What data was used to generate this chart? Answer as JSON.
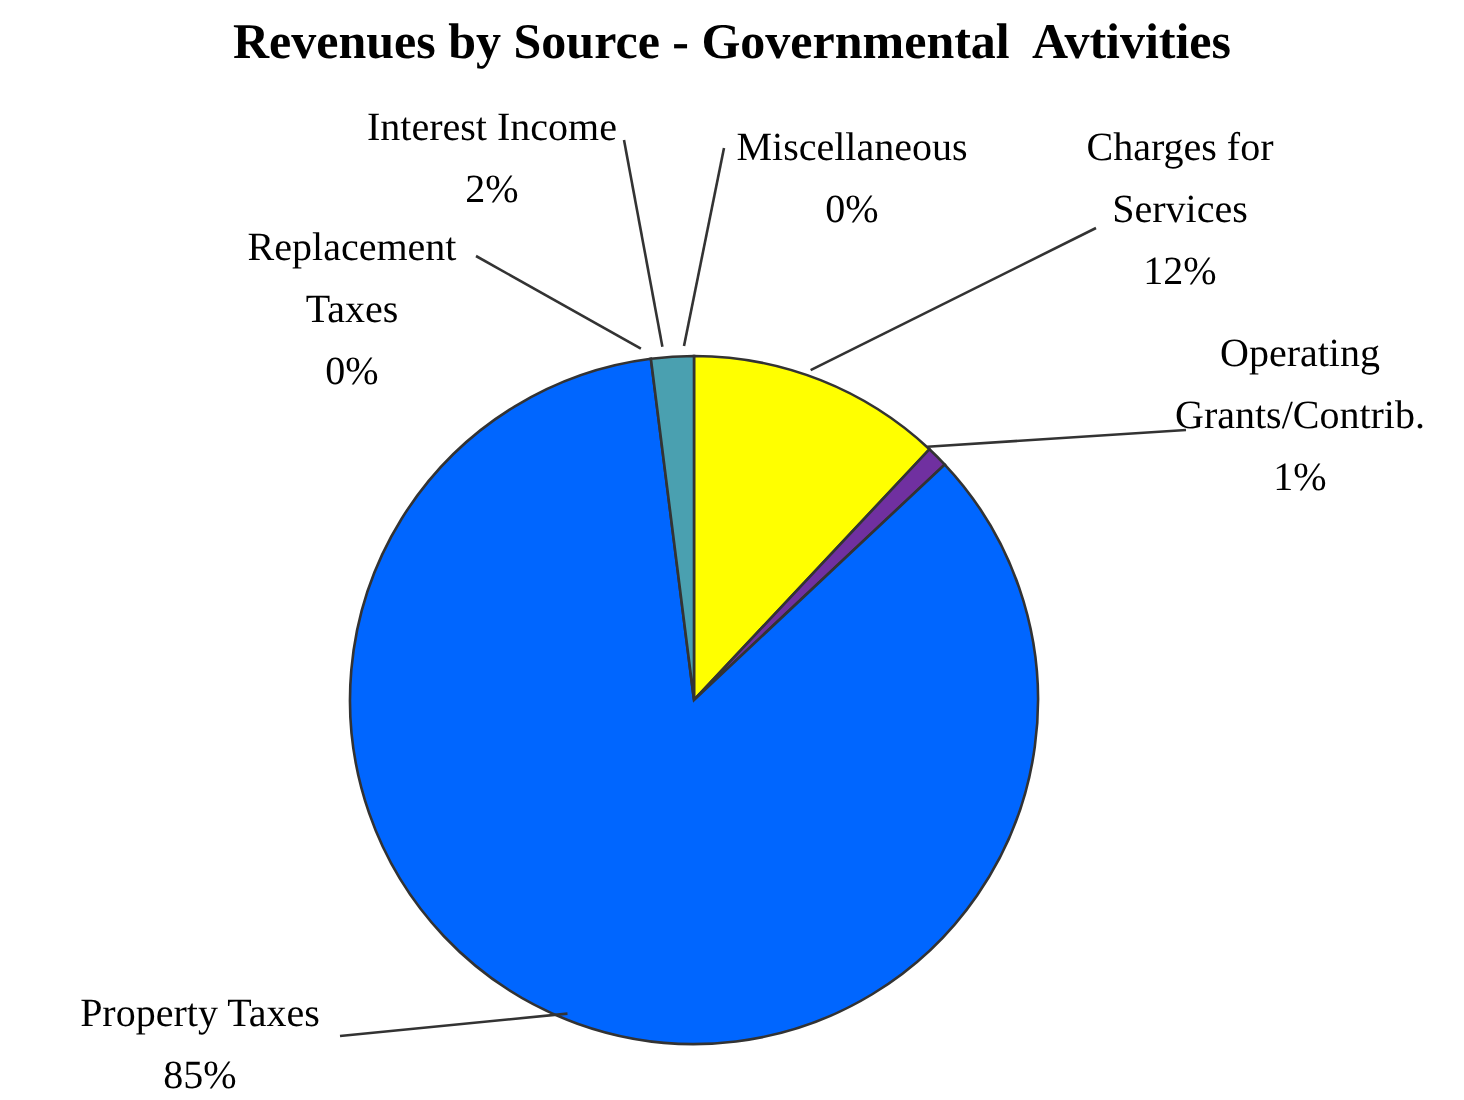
{
  "chart_data": {
    "type": "pie",
    "title": "Revenues by Source - Governmental  Avtivities",
    "categories": [
      "Miscellaneous",
      "Charges for Services",
      "Operating Grants/Contrib.",
      "Property Taxes",
      "Replacement Taxes",
      "Interest Income"
    ],
    "values": [
      0,
      12,
      1,
      85,
      0,
      2
    ],
    "value_labels": [
      "0%",
      "12%",
      "1%",
      "85%",
      "0%",
      "2%"
    ],
    "colors": [
      "#c00000",
      "#ffff00",
      "#7030a0",
      "#0066ff",
      "#1f5f4f",
      "#4aa0b0"
    ],
    "legend": false
  }
}
